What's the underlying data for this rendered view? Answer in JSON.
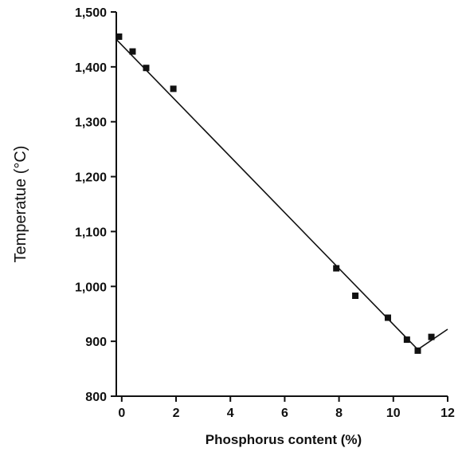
{
  "chart_data": {
    "type": "scatter",
    "title": "",
    "xlabel": "Phosphorus content (%)",
    "ylabel": "Temperatue (°C)",
    "xlim": [
      -0.2,
      12
    ],
    "ylim": [
      800,
      1500
    ],
    "x_ticks": [
      0,
      2,
      4,
      6,
      8,
      10,
      12
    ],
    "x_tick_labels": [
      "0",
      "2",
      "4",
      "6",
      "8",
      "10",
      "12"
    ],
    "y_ticks": [
      800,
      900,
      1000,
      1100,
      1200,
      1300,
      1400,
      1500
    ],
    "y_tick_labels": [
      "800",
      "900",
      "1,000",
      "1,100",
      "1,200",
      "1,300",
      "1,400",
      "1,500"
    ],
    "grid": false,
    "series": [
      {
        "type": "scatter",
        "marker": "square",
        "x": [
          -0.1,
          0.4,
          0.9,
          1.9,
          7.9,
          8.6,
          9.8,
          10.5,
          10.9,
          11.4
        ],
        "y": [
          1455,
          1428,
          1398,
          1360,
          1033,
          983,
          943,
          903,
          883,
          908
        ]
      },
      {
        "type": "line",
        "x": [
          -0.2,
          10.9,
          12
        ],
        "y": [
          1450,
          885,
          922
        ]
      }
    ],
    "colors": {
      "axis": "#111111",
      "marker": "#111111",
      "line": "#111111"
    }
  }
}
